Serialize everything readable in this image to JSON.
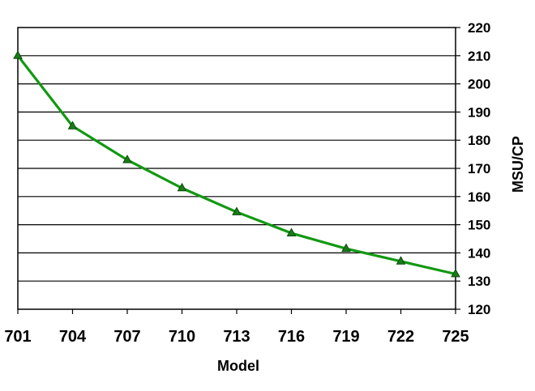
{
  "chart_data": {
    "type": "line",
    "title": "",
    "xlabel": "Model",
    "ylabel": "MSU/CP",
    "xlim": [
      701,
      725
    ],
    "ylim": [
      120,
      220
    ],
    "x_ticks": [
      701,
      704,
      707,
      710,
      713,
      716,
      719,
      722,
      725
    ],
    "y_ticks": [
      120,
      130,
      140,
      150,
      160,
      170,
      180,
      190,
      200,
      210,
      220
    ],
    "y_axis_side": "right",
    "grid": "horizontal",
    "legend": "none",
    "series": [
      {
        "color": "#119911",
        "marker": "triangle",
        "x": [
          701,
          704,
          707,
          710,
          713,
          716,
          719,
          722,
          725
        ],
        "y": [
          210,
          185,
          173,
          163,
          154.5,
          147,
          141.5,
          137,
          132.5
        ]
      }
    ]
  }
}
